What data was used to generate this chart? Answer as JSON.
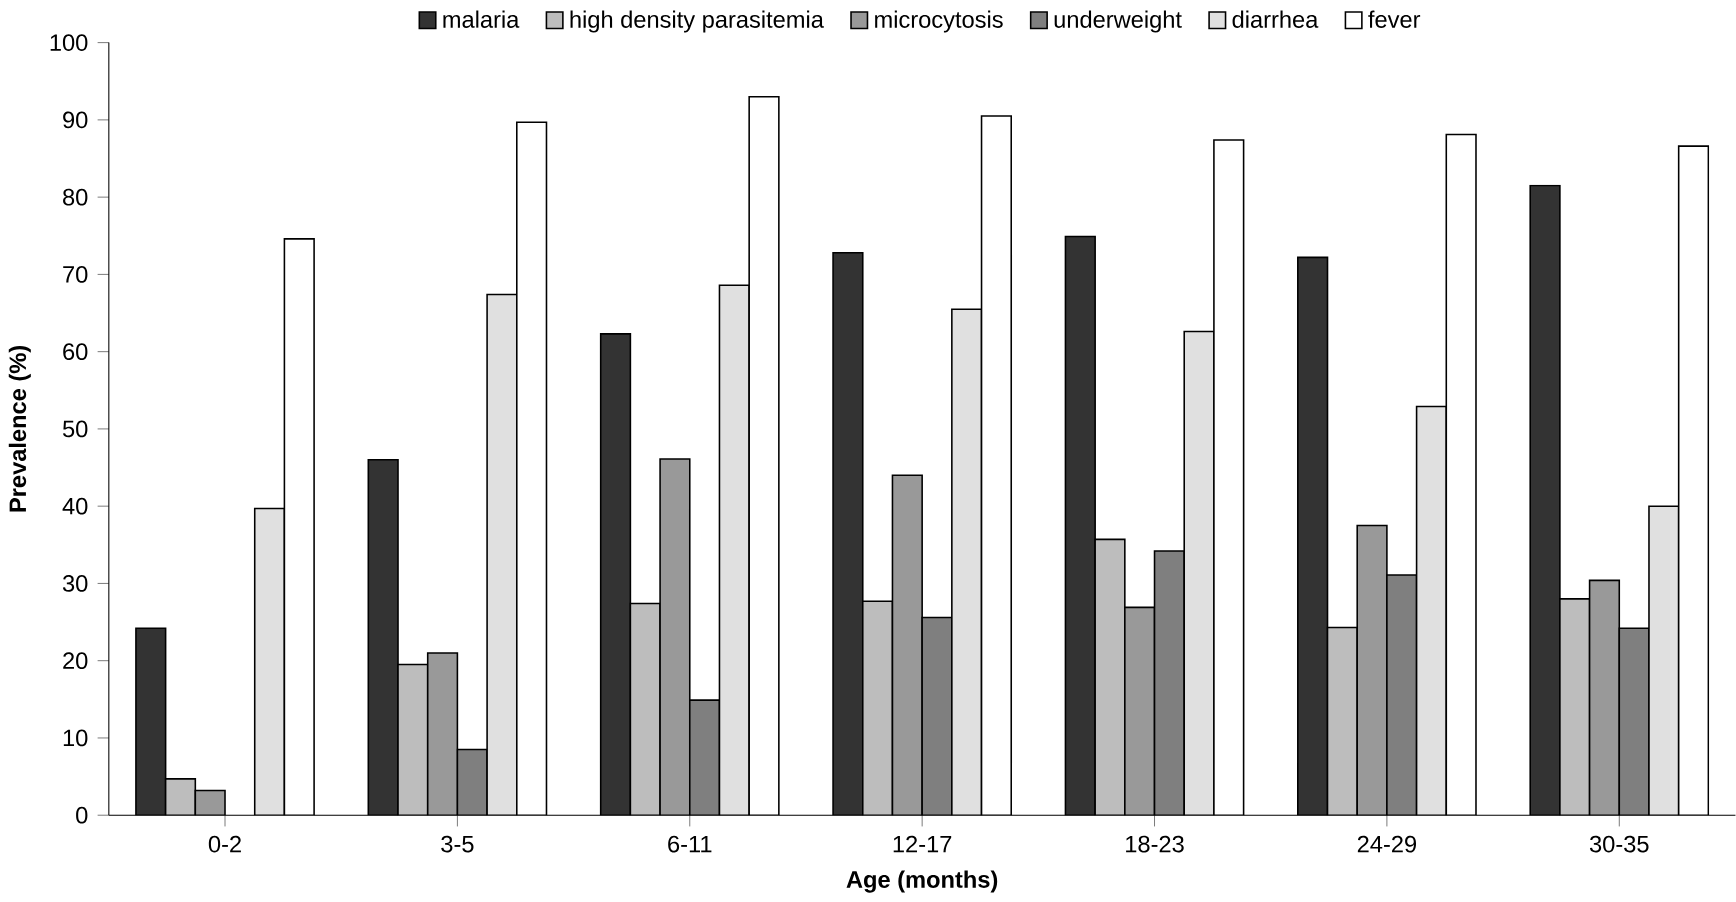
{
  "chart_data": {
    "type": "bar",
    "xlabel": "Age (months)",
    "ylabel": "Prevalence (%)",
    "categories": [
      "0-2",
      "3-5",
      "6-11",
      "12-17",
      "18-23",
      "24-29",
      "30-35"
    ],
    "series": [
      {
        "name": "malaria",
        "color": "#333333",
        "values": [
          24.2,
          46,
          62.3,
          72.8,
          74.9,
          72.2,
          81.5
        ]
      },
      {
        "name": "high density parasitemia",
        "color": "#bdbdbd",
        "values": [
          4.7,
          19.5,
          27.4,
          27.7,
          35.7,
          24.3,
          28
        ]
      },
      {
        "name": "microcytosis",
        "color": "#999999",
        "values": [
          3.2,
          21,
          46.1,
          44,
          26.9,
          37.5,
          30.4
        ]
      },
      {
        "name": "underweight",
        "color": "#7f7f7f",
        "values": [
          null,
          8.5,
          14.9,
          25.6,
          34.2,
          31.1,
          24.2
        ]
      },
      {
        "name": "diarrhea",
        "color": "#e0e0e0",
        "values": [
          39.7,
          67.4,
          68.6,
          65.5,
          62.6,
          52.9,
          40
        ]
      },
      {
        "name": "fever",
        "color": "#ffffff",
        "values": [
          74.6,
          89.7,
          93,
          90.5,
          87.4,
          88.1,
          86.6
        ]
      }
    ],
    "ylim": [
      0,
      100
    ],
    "yticks": [
      0,
      10,
      20,
      30,
      40,
      50,
      60,
      70,
      80,
      90,
      100
    ],
    "legend": "top",
    "grid": false
  }
}
